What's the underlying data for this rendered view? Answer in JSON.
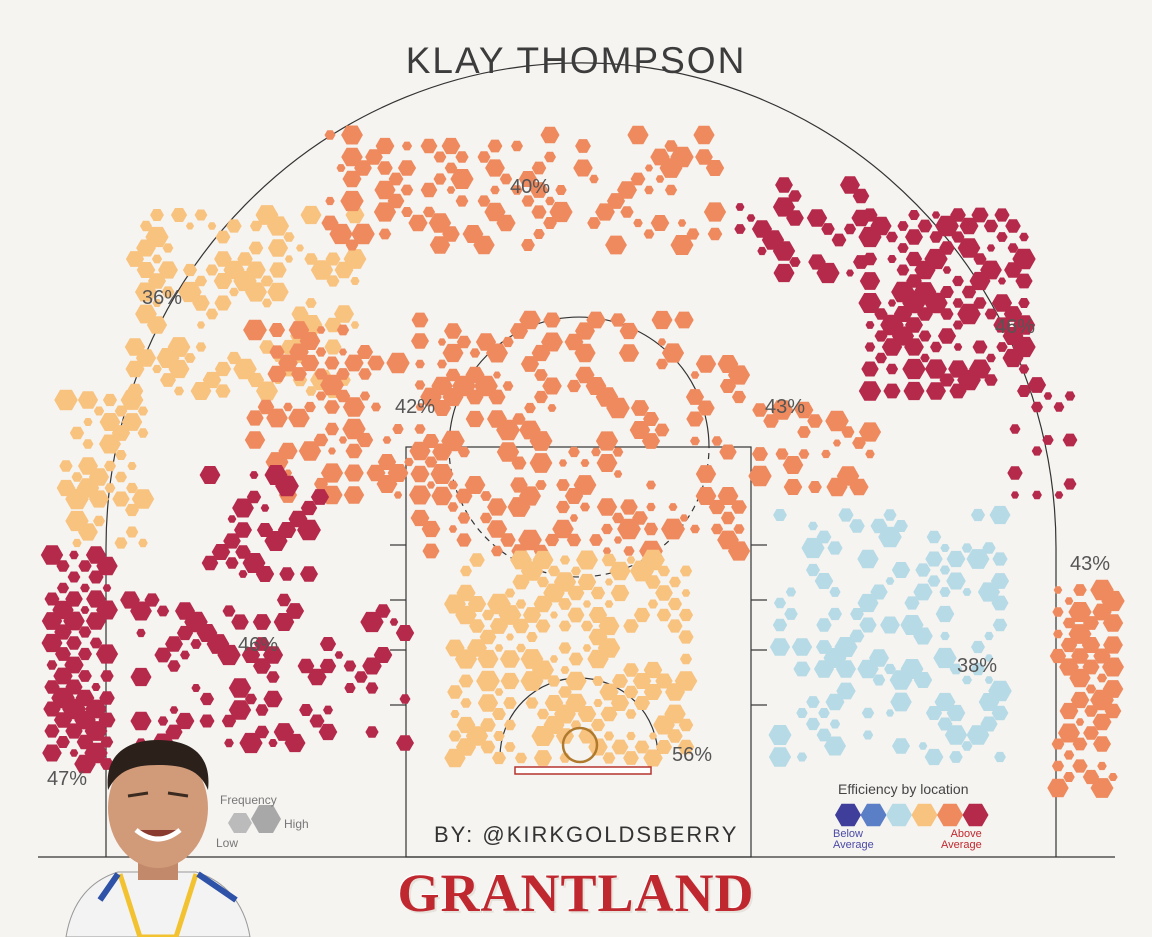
{
  "header": {
    "title": "KLAY THOMPSON",
    "byline": "BY: @KIRKGOLDSBERRY",
    "brand": "GRANTLAND"
  },
  "legend": {
    "efficiency_title": "Efficiency by location",
    "below": "Below\nAverage",
    "above": "Above\nAverage",
    "scale_colors": [
      "#3f3f9b",
      "#5b7fc7",
      "#b6dae6",
      "#f8c27f",
      "#ee8a5e",
      "#b52a4b"
    ],
    "frequency_title": "Frequency",
    "frequency_low": "Low",
    "frequency_high": "High"
  },
  "chart_data": {
    "type": "hexbin",
    "title": "KLAY THOMPSON",
    "zones": [
      {
        "label": "47%",
        "value": 47,
        "color": "#b52a4b"
      },
      {
        "label": "36%",
        "value": 36,
        "color": "#f8c27f"
      },
      {
        "label": "40%",
        "value": 40,
        "color": "#ee8a5e"
      },
      {
        "label": "46%",
        "value": 46,
        "color": "#b52a4b"
      },
      {
        "label": "43%",
        "value": 43,
        "color": "#ee8a5e"
      },
      {
        "label": "42%",
        "value": 42,
        "color": "#ee8a5e"
      },
      {
        "label": "43%",
        "value": 43,
        "color": "#ee8a5e"
      },
      {
        "label": "46%",
        "value": 46,
        "color": "#b52a4b"
      },
      {
        "label": "56%",
        "value": 56,
        "color": "#f8c27f"
      },
      {
        "label": "38%",
        "value": 38,
        "color": "#b6dae6"
      }
    ]
  }
}
